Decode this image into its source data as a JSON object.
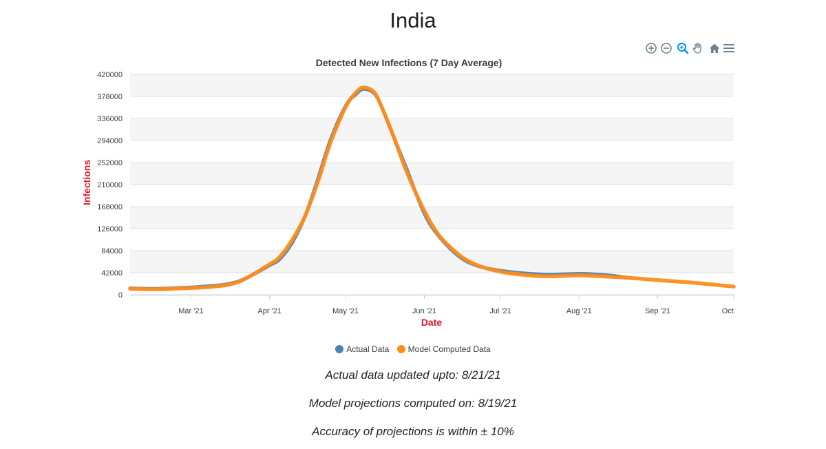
{
  "page": {
    "title": "India",
    "footnotes": [
      "Actual data updated upto: 8/21/21",
      "Model projections computed on: 8/19/21",
      "Accuracy of projections is within ± 10%"
    ]
  },
  "toolbar": {
    "buttons": [
      {
        "name": "zoom-in-icon"
      },
      {
        "name": "zoom-out-icon"
      },
      {
        "name": "selection-zoom-icon"
      },
      {
        "name": "pan-hand-icon"
      },
      {
        "name": "reset-home-icon"
      },
      {
        "name": "menu-icon"
      }
    ],
    "active_color": "#008ffb",
    "icon_color": "#6e8192"
  },
  "chart_data": {
    "type": "line",
    "title": "Detected New Infections (7 Day Average)",
    "xlabel": "Date",
    "ylabel": "Infections",
    "x_axis_type": "date",
    "xlim": [
      "2021-02-05",
      "2021-10-01"
    ],
    "ylim": [
      0,
      420000
    ],
    "yticks": [
      0,
      42000,
      84000,
      126000,
      168000,
      210000,
      252000,
      294000,
      336000,
      378000,
      420000
    ],
    "xticks": [
      {
        "date": "2021-03-01",
        "label": "Mar '21"
      },
      {
        "date": "2021-04-01",
        "label": "Apr '21"
      },
      {
        "date": "2021-05-01",
        "label": "May '21"
      },
      {
        "date": "2021-06-01",
        "label": "Jun '21"
      },
      {
        "date": "2021-07-01",
        "label": "Jul '21"
      },
      {
        "date": "2021-08-01",
        "label": "Aug '21"
      },
      {
        "date": "2021-09-01",
        "label": "Sep '21"
      },
      {
        "date": "2021-10-01",
        "label": "Oct '21"
      }
    ],
    "grid": "horizontal-bands",
    "legend_position": "bottom",
    "series": [
      {
        "name": "Actual Data",
        "color": "#4682b4",
        "points": [
          [
            "2021-02-05",
            12500
          ],
          [
            "2021-02-15",
            11500
          ],
          [
            "2021-03-01",
            14000
          ],
          [
            "2021-03-05",
            15500
          ],
          [
            "2021-03-15",
            20000
          ],
          [
            "2021-03-22",
            30000
          ],
          [
            "2021-04-01",
            56000
          ],
          [
            "2021-04-05",
            68000
          ],
          [
            "2021-04-10",
            100000
          ],
          [
            "2021-04-15",
            150000
          ],
          [
            "2021-04-20",
            220000
          ],
          [
            "2021-04-25",
            295000
          ],
          [
            "2021-05-01",
            360000
          ],
          [
            "2021-05-05",
            382000
          ],
          [
            "2021-05-08",
            392000
          ],
          [
            "2021-05-12",
            385000
          ],
          [
            "2021-05-15",
            360000
          ],
          [
            "2021-05-20",
            300000
          ],
          [
            "2021-05-25",
            240000
          ],
          [
            "2021-06-01",
            155000
          ],
          [
            "2021-06-07",
            110000
          ],
          [
            "2021-06-15",
            72000
          ],
          [
            "2021-06-22",
            55000
          ],
          [
            "2021-07-01",
            46000
          ],
          [
            "2021-07-10",
            41000
          ],
          [
            "2021-07-20",
            38500
          ],
          [
            "2021-08-01",
            40000
          ],
          [
            "2021-08-07",
            39000
          ],
          [
            "2021-08-15",
            36000
          ],
          [
            "2021-08-21",
            32000
          ]
        ]
      },
      {
        "name": "Model Computed Data",
        "color": "#ff8c1a",
        "points": [
          [
            "2021-02-05",
            11500
          ],
          [
            "2021-02-15",
            10500
          ],
          [
            "2021-03-01",
            13000
          ],
          [
            "2021-03-10",
            15500
          ],
          [
            "2021-03-20",
            25000
          ],
          [
            "2021-04-01",
            58000
          ],
          [
            "2021-04-05",
            72000
          ],
          [
            "2021-04-10",
            105000
          ],
          [
            "2021-04-15",
            150000
          ],
          [
            "2021-04-20",
            215000
          ],
          [
            "2021-04-25",
            290000
          ],
          [
            "2021-05-01",
            358000
          ],
          [
            "2021-05-05",
            385000
          ],
          [
            "2021-05-08",
            395000
          ],
          [
            "2021-05-12",
            387000
          ],
          [
            "2021-05-15",
            360000
          ],
          [
            "2021-05-20",
            300000
          ],
          [
            "2021-05-25",
            235000
          ],
          [
            "2021-06-01",
            160000
          ],
          [
            "2021-06-07",
            112000
          ],
          [
            "2021-06-15",
            75000
          ],
          [
            "2021-06-22",
            56000
          ],
          [
            "2021-07-01",
            44000
          ],
          [
            "2021-07-10",
            38000
          ],
          [
            "2021-07-20",
            35000
          ],
          [
            "2021-08-01",
            37000
          ],
          [
            "2021-08-10",
            35000
          ],
          [
            "2021-08-20",
            32500
          ],
          [
            "2021-09-01",
            28000
          ],
          [
            "2021-09-15",
            23000
          ],
          [
            "2021-10-01",
            15500
          ]
        ]
      }
    ]
  }
}
